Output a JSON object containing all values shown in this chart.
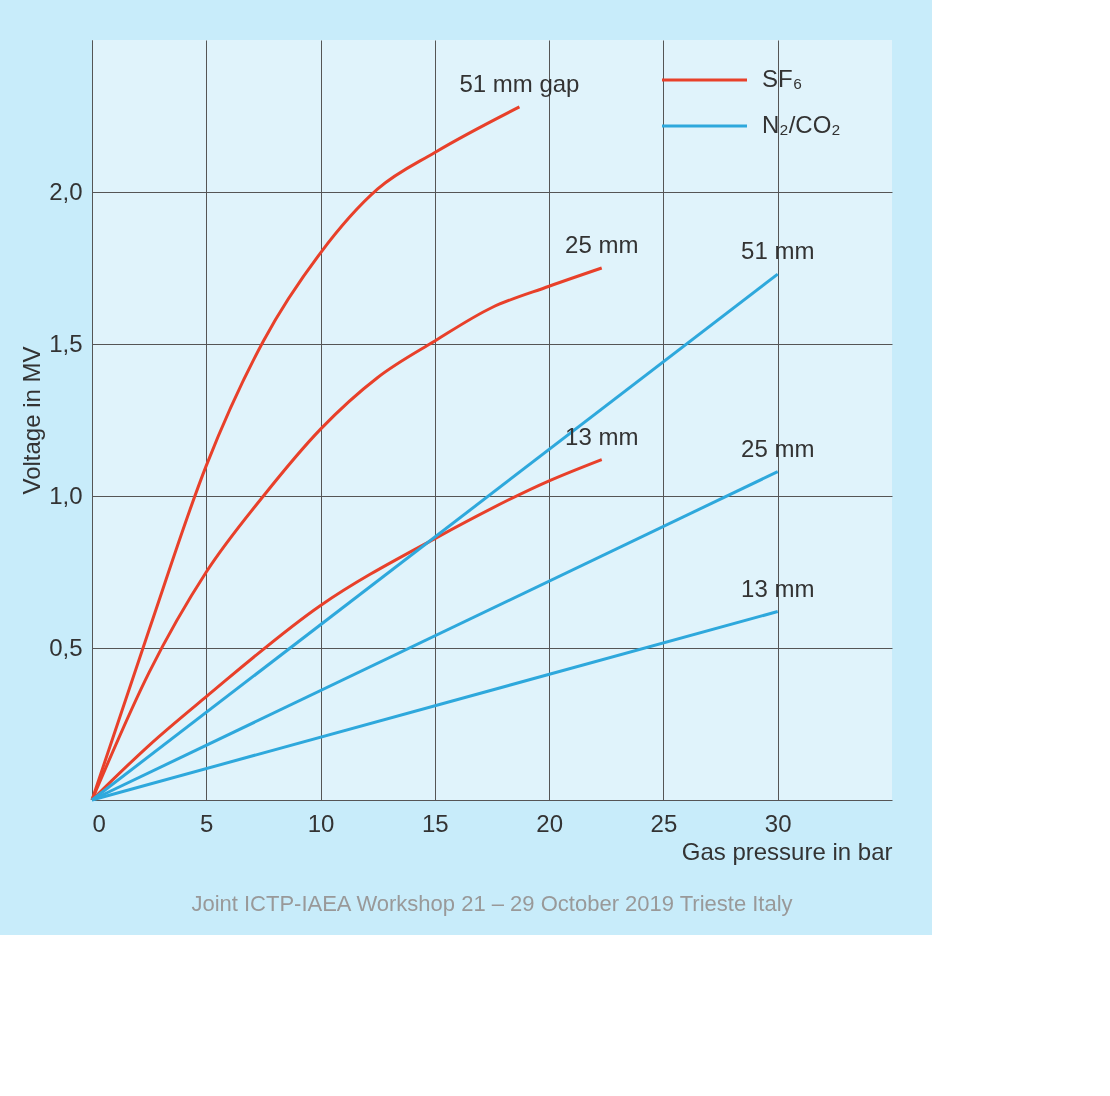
{
  "chart_data": {
    "type": "line",
    "xlabel": "Gas pressure in bar",
    "ylabel": "Voltage in MV",
    "xlim": [
      0,
      35
    ],
    "ylim": [
      0,
      2.5
    ],
    "xticks": [
      0,
      5,
      10,
      15,
      20,
      25,
      30
    ],
    "yticks": [
      {
        "value": 0.5,
        "label": "0,5"
      },
      {
        "value": 1.0,
        "label": "1,0"
      },
      {
        "value": 1.5,
        "label": "1,5"
      },
      {
        "value": 2.0,
        "label": "2,0"
      }
    ],
    "grid": true,
    "legend": "top right",
    "marker": "none",
    "line_style": "solid",
    "series": [
      {
        "name": "SF₆",
        "color": "#e8402a",
        "x": [
          0,
          2.5,
          5,
          7.5,
          10,
          12.5,
          15,
          18.7
        ],
        "values": [
          0,
          0.56,
          1.1,
          1.51,
          1.8,
          2.01,
          2.13,
          2.28
        ]
      },
      {
        "color": "#e8402a",
        "x": [
          0,
          2.5,
          5,
          7.5,
          10,
          12.5,
          15,
          17.5,
          20,
          22.3
        ],
        "values": [
          0,
          0.42,
          0.75,
          1.0,
          1.22,
          1.39,
          1.51,
          1.62,
          1.69,
          1.75
        ]
      },
      {
        "color": "#e8402a",
        "x": [
          0,
          2.5,
          5,
          10,
          15,
          20,
          22.3
        ],
        "values": [
          0,
          0.18,
          0.34,
          0.64,
          0.86,
          1.05,
          1.12
        ]
      },
      {
        "name": "N₂/CO₂",
        "color": "#2ea8dc",
        "x": [
          0,
          30
        ],
        "values": [
          0,
          1.73
        ]
      },
      {
        "color": "#2ea8dc",
        "x": [
          0,
          30
        ],
        "values": [
          0,
          1.08
        ]
      },
      {
        "color": "#2ea8dc",
        "x": [
          0,
          30
        ],
        "values": [
          0,
          0.62
        ]
      }
    ],
    "annotations": [
      {
        "text": "51 mm gap",
        "x": 18.7,
        "y": 2.28
      },
      {
        "text": "25 mm",
        "x": 22.3,
        "y": 1.75
      },
      {
        "text": "13 mm",
        "x": 22.3,
        "y": 1.12
      },
      {
        "text": "51 mm",
        "x": 30,
        "y": 1.73
      },
      {
        "text": "25 mm",
        "x": 30,
        "y": 1.08
      },
      {
        "text": "13 mm",
        "x": 30,
        "y": 0.62
      },
      "Joint ICTP-IAEA Workshop 21 – 29 October 2019 Trieste Italy"
    ]
  }
}
